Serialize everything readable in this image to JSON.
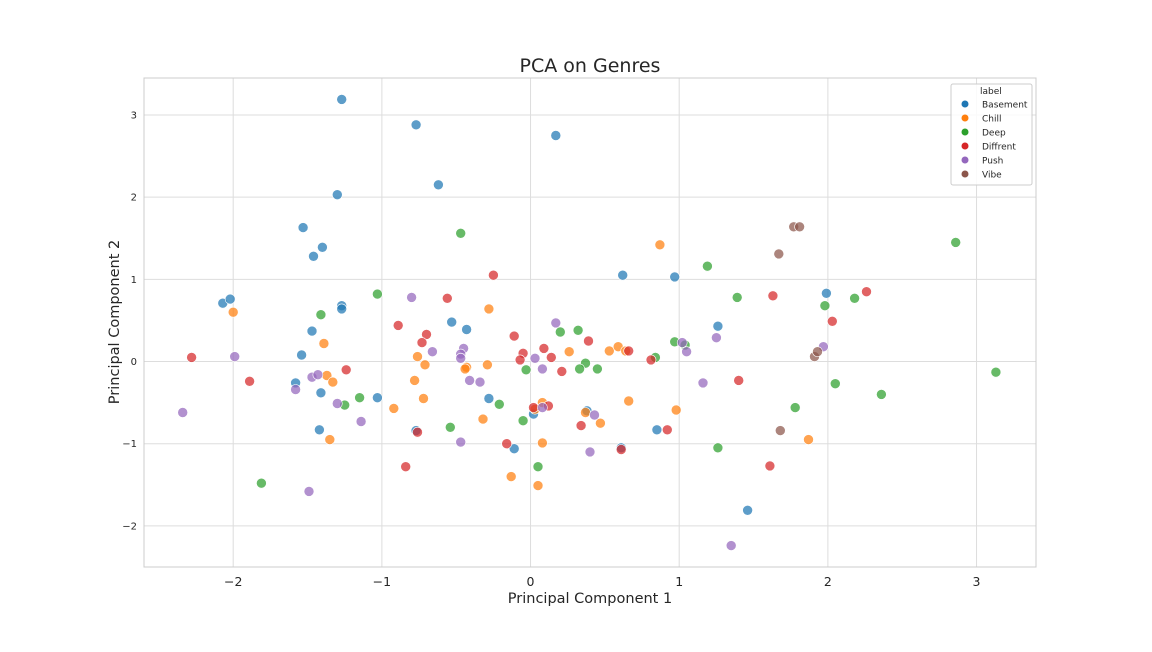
{
  "chart_data": {
    "type": "scatter",
    "title": "PCA on Genres",
    "xlabel": "Principal Component 1",
    "ylabel": "Principal Component 2",
    "xlim": [
      -2.6,
      3.4
    ],
    "ylim": [
      -2.5,
      3.45
    ],
    "xticks": [
      -2,
      -1,
      0,
      1,
      2,
      3
    ],
    "yticks": [
      -2,
      -1,
      0,
      1,
      2,
      3
    ],
    "xtick_labels": [
      "−2",
      "−1",
      "0",
      "1",
      "2",
      "3"
    ],
    "ytick_labels": [
      "−2",
      "−1",
      "0",
      "1",
      "2",
      "3"
    ],
    "grid": true,
    "legend": {
      "title": "label",
      "placement": "top-right"
    },
    "series": [
      {
        "name": "Basement",
        "color": "#1f77b4",
        "points": [
          [
            -1.27,
            3.19
          ],
          [
            -0.77,
            2.88
          ],
          [
            0.17,
            2.75
          ],
          [
            -0.62,
            2.15
          ],
          [
            -1.3,
            2.03
          ],
          [
            -1.53,
            1.63
          ],
          [
            -1.4,
            1.39
          ],
          [
            -1.46,
            1.28
          ],
          [
            0.62,
            1.05
          ],
          [
            0.97,
            1.03
          ],
          [
            -2.07,
            0.71
          ],
          [
            -2.02,
            0.76
          ],
          [
            -1.27,
            0.68
          ],
          [
            -1.27,
            0.64
          ],
          [
            -0.53,
            0.48
          ],
          [
            -1.47,
            0.37
          ],
          [
            -0.43,
            0.39
          ],
          [
            1.26,
            0.43
          ],
          [
            1.99,
            0.83
          ],
          [
            -1.54,
            0.08
          ],
          [
            -1.58,
            -0.26
          ],
          [
            -1.41,
            -0.38
          ],
          [
            -1.03,
            -0.44
          ],
          [
            -0.28,
            -0.45
          ],
          [
            -1.42,
            -0.83
          ],
          [
            -0.77,
            -0.84
          ],
          [
            0.02,
            -0.64
          ],
          [
            0.38,
            -0.6
          ],
          [
            -0.11,
            -1.06
          ],
          [
            0.61,
            -1.05
          ],
          [
            0.85,
            -0.83
          ],
          [
            1.46,
            -1.81
          ]
        ]
      },
      {
        "name": "Chill",
        "color": "#ff7f0e",
        "points": [
          [
            0.87,
            1.42
          ],
          [
            -2.0,
            0.6
          ],
          [
            -0.28,
            0.64
          ],
          [
            -1.39,
            0.22
          ],
          [
            -0.76,
            0.06
          ],
          [
            -0.71,
            -0.04
          ],
          [
            -0.43,
            -0.07
          ],
          [
            -0.44,
            -0.09
          ],
          [
            -0.29,
            -0.04
          ],
          [
            0.26,
            0.12
          ],
          [
            0.53,
            0.13
          ],
          [
            0.59,
            0.18
          ],
          [
            0.64,
            0.13
          ],
          [
            -1.37,
            -0.17
          ],
          [
            -1.33,
            -0.25
          ],
          [
            -0.78,
            -0.23
          ],
          [
            -0.72,
            -0.45
          ],
          [
            -0.92,
            -0.57
          ],
          [
            0.08,
            -0.5
          ],
          [
            0.03,
            -0.58
          ],
          [
            0.66,
            -0.48
          ],
          [
            0.98,
            -0.59
          ],
          [
            -0.32,
            -0.7
          ],
          [
            0.37,
            -0.62
          ],
          [
            0.47,
            -0.75
          ],
          [
            -1.35,
            -0.95
          ],
          [
            0.08,
            -0.99
          ],
          [
            1.87,
            -0.95
          ],
          [
            -0.13,
            -1.4
          ],
          [
            0.05,
            -1.51
          ]
        ]
      },
      {
        "name": "Deep",
        "color": "#2ca02c",
        "points": [
          [
            -0.47,
            1.56
          ],
          [
            2.86,
            1.45
          ],
          [
            1.19,
            1.16
          ],
          [
            -1.03,
            0.82
          ],
          [
            1.39,
            0.78
          ],
          [
            1.98,
            0.68
          ],
          [
            2.18,
            0.77
          ],
          [
            -1.41,
            0.57
          ],
          [
            0.2,
            0.36
          ],
          [
            0.32,
            0.38
          ],
          [
            0.97,
            0.24
          ],
          [
            1.04,
            0.2
          ],
          [
            0.84,
            0.05
          ],
          [
            0.37,
            -0.02
          ],
          [
            -0.03,
            -0.1
          ],
          [
            0.33,
            -0.09
          ],
          [
            0.45,
            -0.09
          ],
          [
            -1.25,
            -0.53
          ],
          [
            -1.15,
            -0.44
          ],
          [
            -0.21,
            -0.52
          ],
          [
            -0.05,
            -0.72
          ],
          [
            -0.54,
            -0.8
          ],
          [
            2.05,
            -0.27
          ],
          [
            2.36,
            -0.4
          ],
          [
            1.78,
            -0.56
          ],
          [
            3.13,
            -0.13
          ],
          [
            1.26,
            -1.05
          ],
          [
            0.05,
            -1.28
          ],
          [
            -1.81,
            -1.48
          ]
        ]
      },
      {
        "name": "Diffrent",
        "color": "#d62728",
        "points": [
          [
            -0.25,
            1.05
          ],
          [
            -0.56,
            0.77
          ],
          [
            1.63,
            0.8
          ],
          [
            2.26,
            0.85
          ],
          [
            2.03,
            0.49
          ],
          [
            -0.89,
            0.44
          ],
          [
            -0.7,
            0.33
          ],
          [
            -0.11,
            0.31
          ],
          [
            -0.73,
            0.23
          ],
          [
            0.39,
            0.25
          ],
          [
            0.09,
            0.16
          ],
          [
            -0.05,
            0.1
          ],
          [
            -0.07,
            0.02
          ],
          [
            0.14,
            0.05
          ],
          [
            0.66,
            0.13
          ],
          [
            0.81,
            0.02
          ],
          [
            -2.28,
            0.05
          ],
          [
            -1.24,
            -0.1
          ],
          [
            -1.89,
            -0.24
          ],
          [
            0.21,
            -0.12
          ],
          [
            1.4,
            -0.23
          ],
          [
            0.12,
            -0.54
          ],
          [
            0.02,
            -0.56
          ],
          [
            0.34,
            -0.78
          ],
          [
            0.92,
            -0.83
          ],
          [
            -0.76,
            -0.86
          ],
          [
            -0.16,
            -1.0
          ],
          [
            0.61,
            -1.07
          ],
          [
            -0.84,
            -1.28
          ],
          [
            1.61,
            -1.27
          ]
        ]
      },
      {
        "name": "Push",
        "color": "#9467bd",
        "points": [
          [
            -0.8,
            0.78
          ],
          [
            0.17,
            0.47
          ],
          [
            1.25,
            0.29
          ],
          [
            1.02,
            0.23
          ],
          [
            1.05,
            0.12
          ],
          [
            1.97,
            0.18
          ],
          [
            -0.45,
            0.16
          ],
          [
            -0.66,
            0.12
          ],
          [
            -0.47,
            0.09
          ],
          [
            -0.47,
            0.04
          ],
          [
            0.03,
            0.04
          ],
          [
            -1.99,
            0.06
          ],
          [
            -1.47,
            -0.19
          ],
          [
            -1.43,
            -0.16
          ],
          [
            -1.58,
            -0.34
          ],
          [
            -0.41,
            -0.23
          ],
          [
            -0.34,
            -0.25
          ],
          [
            1.16,
            -0.26
          ],
          [
            0.08,
            -0.09
          ],
          [
            -1.3,
            -0.51
          ],
          [
            -1.14,
            -0.73
          ],
          [
            0.43,
            -0.65
          ],
          [
            0.08,
            -0.56
          ],
          [
            -2.34,
            -0.62
          ],
          [
            -0.47,
            -0.98
          ],
          [
            0.4,
            -1.1
          ],
          [
            -1.49,
            -1.58
          ],
          [
            1.35,
            -2.24
          ]
        ]
      },
      {
        "name": "Vibe",
        "color": "#8c564b",
        "points": [
          [
            1.77,
            1.64
          ],
          [
            1.81,
            1.64
          ],
          [
            1.67,
            1.31
          ],
          [
            1.91,
            0.06
          ],
          [
            1.93,
            0.12
          ],
          [
            1.68,
            -0.84
          ]
        ]
      }
    ]
  }
}
